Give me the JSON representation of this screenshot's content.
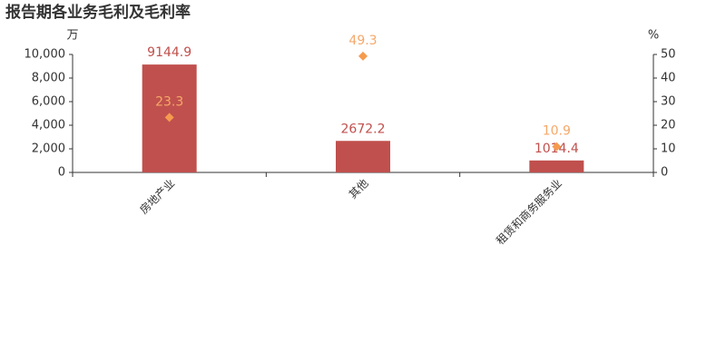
{
  "chart_data": {
    "type": "bar_line",
    "title": "报告期各业务毛利及毛利率",
    "ylabel": "万",
    "y2label": "%",
    "categories": [
      "房地产业",
      "其他",
      "租赁和商务服务业"
    ],
    "series": [
      {
        "type": "bar",
        "color": "#c0504d",
        "label_color": "#c0504d",
        "values": [
          9144.9,
          2672.2,
          1014.4
        ]
      },
      {
        "type": "scatter",
        "axis": "y2",
        "color": "#f59b4f",
        "label_color": "#f5a86a",
        "values": [
          23.3,
          49.3,
          10.9
        ]
      }
    ],
    "ylim": [
      0,
      10000
    ],
    "yticks": [
      0,
      {
        "value": 2000,
        "label": "2,000"
      },
      {
        "value": 4000,
        "label": "4,000"
      },
      {
        "value": 6000,
        "label": "6,000"
      },
      {
        "value": 8000,
        "label": "8,000"
      },
      {
        "value": 10000,
        "label": "10,000"
      }
    ],
    "y2lim": [
      0,
      50
    ],
    "y2ticks": [
      0,
      10,
      20,
      30,
      40,
      50
    ]
  }
}
